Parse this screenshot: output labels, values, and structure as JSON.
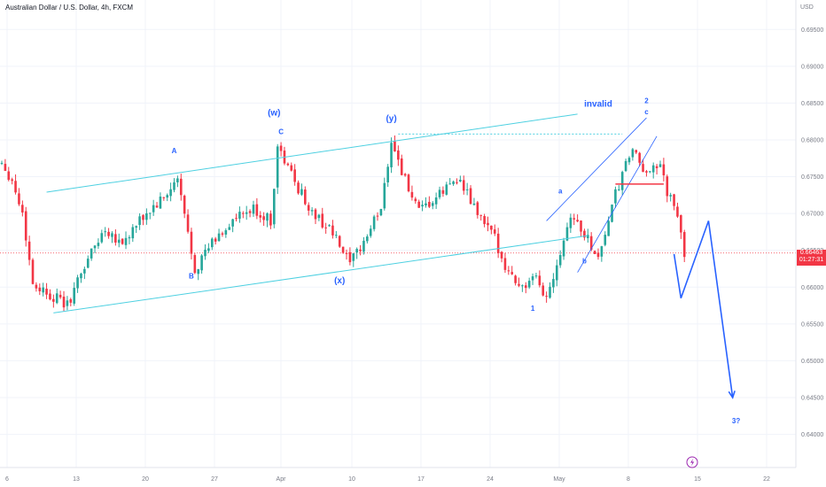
{
  "header": {
    "title": "Australian Dollar / U.S. Dollar, 4h, FXCM"
  },
  "price_axis": {
    "currency": "USD",
    "last_price": "0.66463",
    "countdown": "01:27:31"
  },
  "colors": {
    "bull": "#26a69a",
    "bear": "#f23645",
    "channel": "#4dd0e1",
    "wave": "#2962ff",
    "last_price_line": "#f23645"
  },
  "chart_data": {
    "type": "candlestick",
    "symbol": "AUDUSD",
    "timeframe": "4h",
    "ylim": [
      0.6355,
      0.699
    ],
    "y_ticks": [
      "0.69500",
      "0.69000",
      "0.68500",
      "0.68000",
      "0.67500",
      "0.67000",
      "0.66500",
      "0.66000",
      "0.65500",
      "0.65000",
      "0.64500",
      "0.64000"
    ],
    "x_ticks": [
      "6",
      "13",
      "20",
      "27",
      "Apr",
      "10",
      "17",
      "24",
      "May",
      "8",
      "15",
      "22"
    ],
    "last_price": 0.66463,
    "anchors": [
      {
        "t": 0,
        "p": 0.677
      },
      {
        "t": 3,
        "p": 0.6745
      },
      {
        "t": 6,
        "p": 0.67
      },
      {
        "t": 9,
        "p": 0.6605
      },
      {
        "t": 14,
        "p": 0.659
      },
      {
        "t": 19,
        "p": 0.6575
      },
      {
        "t": 25,
        "p": 0.664
      },
      {
        "t": 30,
        "p": 0.668
      },
      {
        "t": 35,
        "p": 0.666
      },
      {
        "t": 42,
        "p": 0.67
      },
      {
        "t": 47,
        "p": 0.672
      },
      {
        "t": 51,
        "p": 0.6745
      },
      {
        "t": 56,
        "p": 0.6625
      },
      {
        "t": 61,
        "p": 0.666
      },
      {
        "t": 67,
        "p": 0.669
      },
      {
        "t": 73,
        "p": 0.6705
      },
      {
        "t": 78,
        "p": 0.669
      },
      {
        "t": 80,
        "p": 0.679
      },
      {
        "t": 86,
        "p": 0.6735
      },
      {
        "t": 90,
        "p": 0.67
      },
      {
        "t": 95,
        "p": 0.668
      },
      {
        "t": 101,
        "p": 0.663
      },
      {
        "t": 106,
        "p": 0.667
      },
      {
        "t": 110,
        "p": 0.671
      },
      {
        "t": 113,
        "p": 0.68
      },
      {
        "t": 117,
        "p": 0.6745
      },
      {
        "t": 121,
        "p": 0.67
      },
      {
        "t": 126,
        "p": 0.672
      },
      {
        "t": 132,
        "p": 0.675
      },
      {
        "t": 138,
        "p": 0.67
      },
      {
        "t": 143,
        "p": 0.6665
      },
      {
        "t": 147,
        "p": 0.662
      },
      {
        "t": 151,
        "p": 0.66
      },
      {
        "t": 155,
        "p": 0.661
      },
      {
        "t": 158,
        "p": 0.6585
      },
      {
        "t": 162,
        "p": 0.665
      },
      {
        "t": 165,
        "p": 0.67
      },
      {
        "t": 170,
        "p": 0.6665
      },
      {
        "t": 173,
        "p": 0.664
      },
      {
        "t": 178,
        "p": 0.6725
      },
      {
        "t": 183,
        "p": 0.679
      },
      {
        "t": 186,
        "p": 0.675
      },
      {
        "t": 189,
        "p": 0.677
      },
      {
        "t": 191,
        "p": 0.676
      },
      {
        "t": 193,
        "p": 0.673
      },
      {
        "t": 196,
        "p": 0.6695
      },
      {
        "t": 198,
        "p": 0.6645
      }
    ],
    "trendlines": [
      {
        "name": "channel-upper",
        "t1": 13,
        "p1": 0.6729,
        "t2": 167,
        "p2": 0.6835,
        "style": "solid"
      },
      {
        "name": "channel-lower",
        "t1": 15,
        "p1": 0.6565,
        "t2": 170,
        "p2": 0.667,
        "style": "solid"
      },
      {
        "name": "inner-channel-upper",
        "t1": 158,
        "p1": 0.669,
        "t2": 187,
        "p2": 0.683,
        "style": "solid"
      },
      {
        "name": "inner-channel-lower",
        "t1": 167,
        "p1": 0.662,
        "t2": 190,
        "p2": 0.6805,
        "style": "solid"
      },
      {
        "name": "invalid-level",
        "t1": 115,
        "p1": 0.6808,
        "t2": 180,
        "p2": 0.6808,
        "style": "dashed"
      },
      {
        "name": "support-mark",
        "t1": 178,
        "p1": 0.674,
        "t2": 192,
        "p2": 0.674,
        "style": "red"
      }
    ],
    "projection": [
      {
        "t": 195,
        "p": 0.6645
      },
      {
        "t": 197,
        "p": 0.6585
      },
      {
        "t": 205,
        "p": 0.669
      },
      {
        "t": 212,
        "p": 0.645
      }
    ],
    "labels": [
      {
        "text": "(w)",
        "t": 79,
        "p": 0.6833,
        "size": 10
      },
      {
        "text": "C",
        "t": 81,
        "p": 0.6808,
        "size": 8
      },
      {
        "text": "A",
        "t": 50,
        "p": 0.6782,
        "size": 8
      },
      {
        "text": "B",
        "t": 55,
        "p": 0.6612,
        "size": 8
      },
      {
        "text": "(x)",
        "t": 98,
        "p": 0.6605,
        "size": 10
      },
      {
        "text": "(y)",
        "t": 113,
        "p": 0.6825,
        "size": 10
      },
      {
        "text": "invalid",
        "t": 173,
        "p": 0.6845,
        "size": 10
      },
      {
        "text": "2",
        "t": 187,
        "p": 0.685,
        "size": 8
      },
      {
        "text": "c",
        "t": 187,
        "p": 0.6835,
        "size": 8
      },
      {
        "text": "a",
        "t": 162,
        "p": 0.6727,
        "size": 8
      },
      {
        "text": "b",
        "t": 169,
        "p": 0.6632,
        "size": 8
      },
      {
        "text": "1",
        "t": 154,
        "p": 0.6568,
        "size": 8
      },
      {
        "text": "3?",
        "t": 213,
        "p": 0.6415,
        "size": 8
      }
    ]
  }
}
